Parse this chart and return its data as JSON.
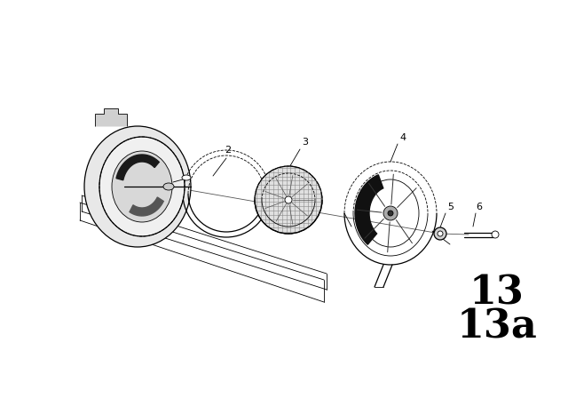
{
  "bg_color": "#ffffff",
  "fig_width": 6.4,
  "fig_height": 4.48,
  "dpi": 100,
  "label_2": "2",
  "label_3": "3",
  "label_4": "4",
  "label_5": "5",
  "label_6": "6",
  "big_label_13": "13",
  "big_label_13a": "13a",
  "line_color": "#000000",
  "text_color": "#000000",
  "lw_thin": 0.6,
  "lw_med": 0.9,
  "lw_thick": 1.4,
  "label_fs": 8,
  "big_fs": 32
}
